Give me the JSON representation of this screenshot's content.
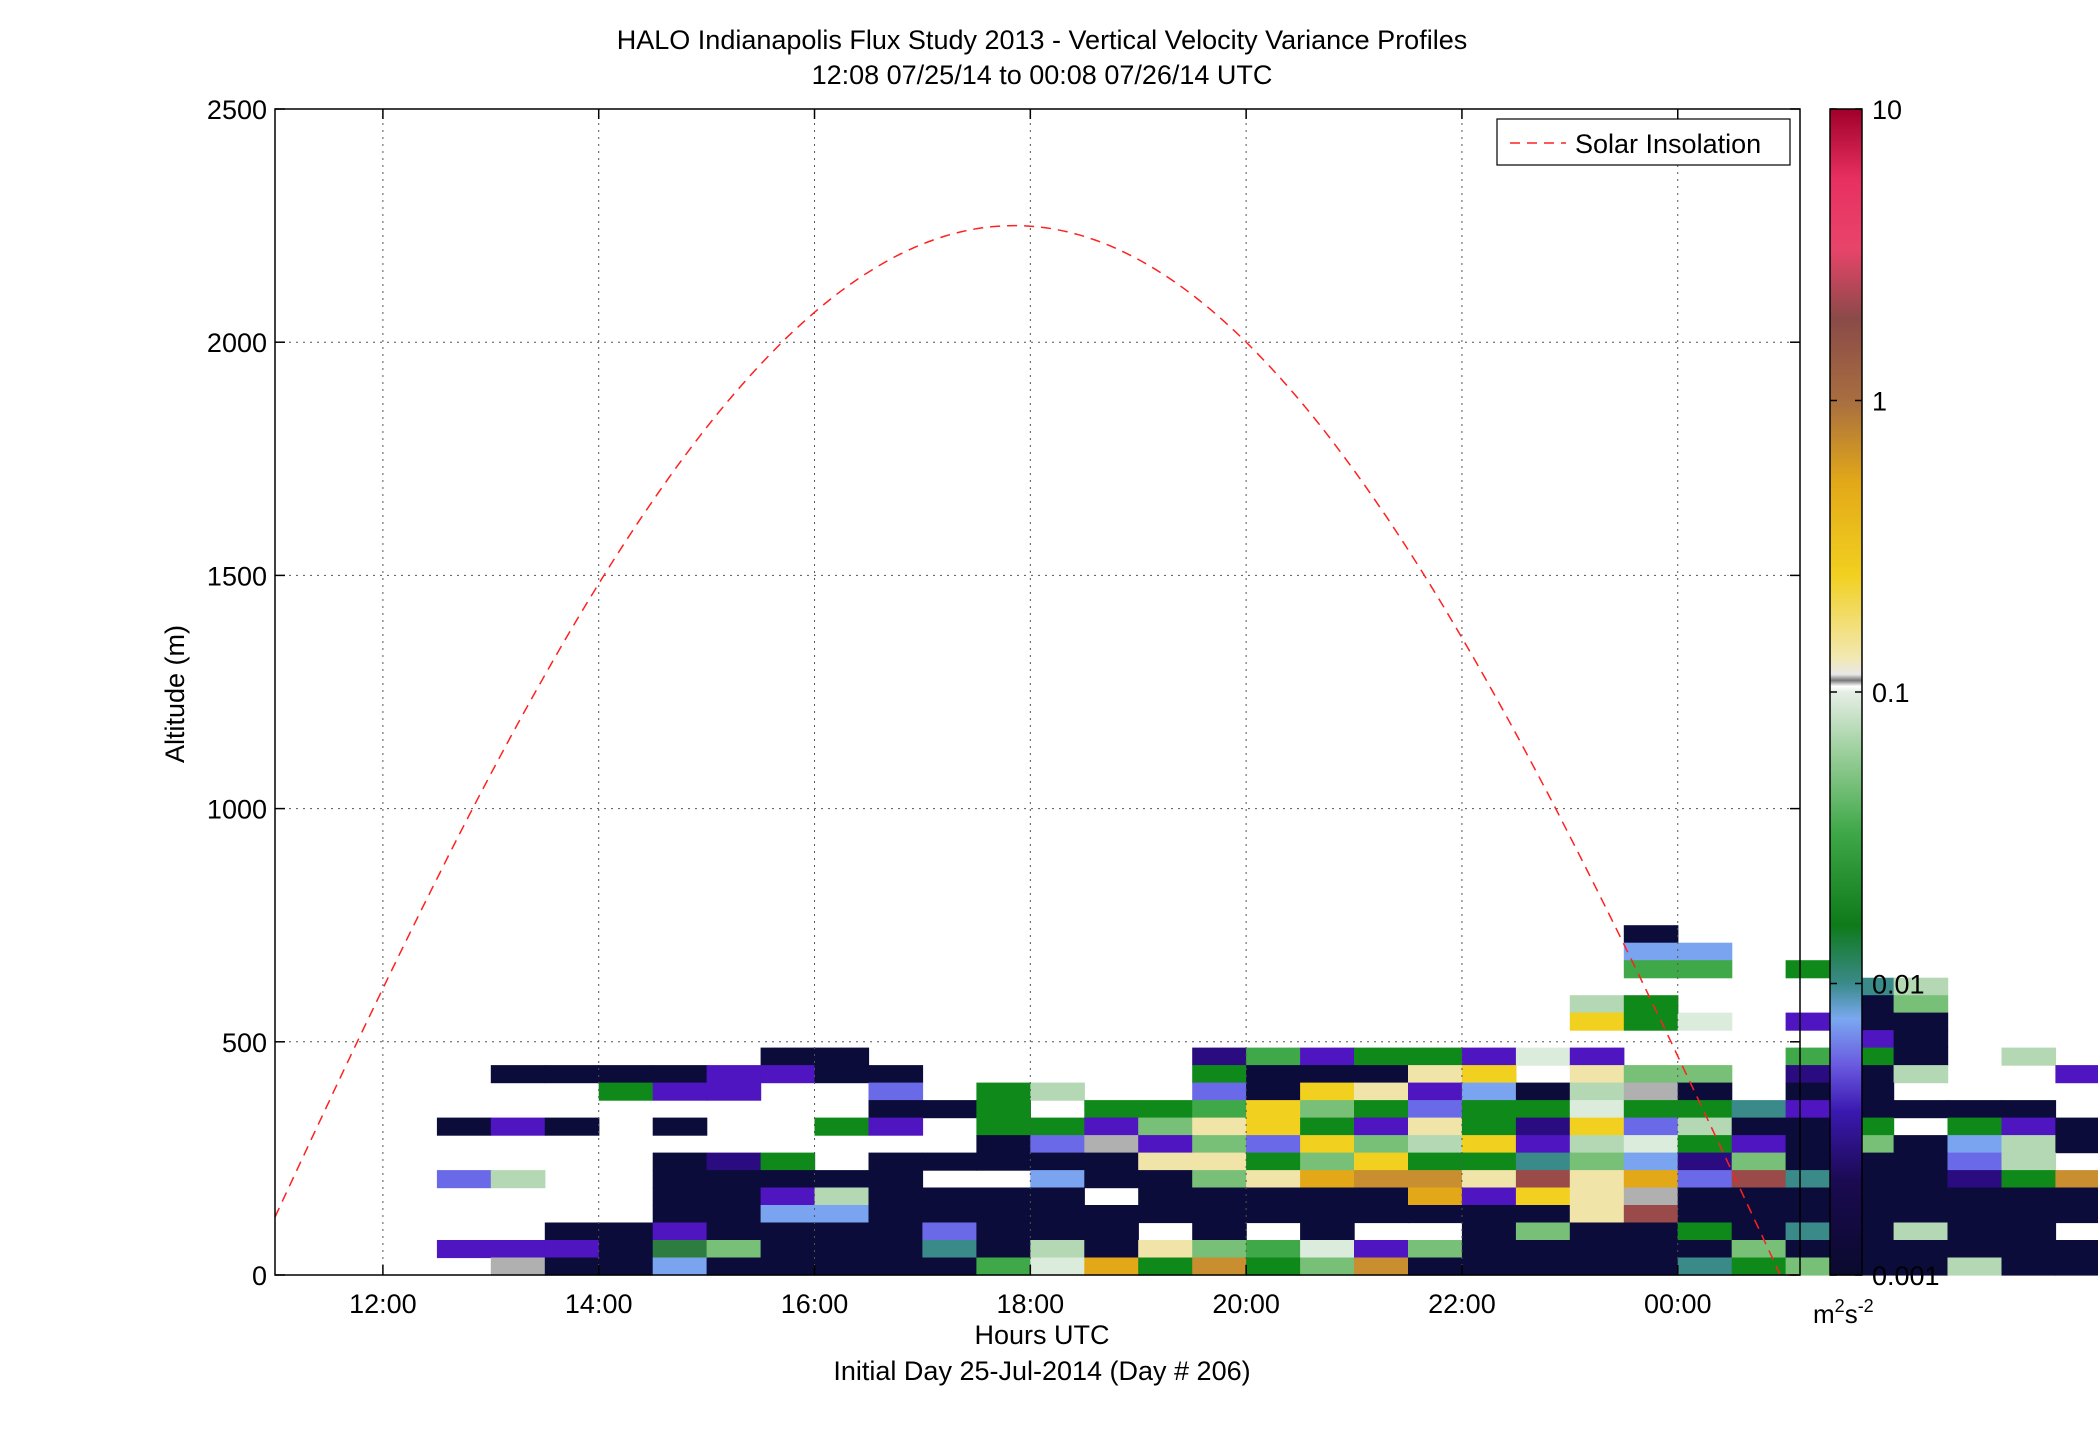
{
  "chart_data": {
    "type": "heatmap",
    "title": "HALO Indianapolis Flux Study 2013 - Vertical Velocity Variance Profiles",
    "subtitle": "12:08 07/25/14 to 00:08 07/26/14  UTC",
    "xlabel": "Hours UTC",
    "xlabel2": "Initial Day 25-Jul-2014 (Day # 206)",
    "ylabel": "Altitude (m)",
    "xlim": [
      11.0,
      25.133
    ],
    "ylim": [
      0,
      2500
    ],
    "x_ticks": [
      12,
      14,
      16,
      18,
      20,
      22,
      24
    ],
    "x_tick_labels": [
      "12:00",
      "14:00",
      "16:00",
      "18:00",
      "20:00",
      "22:00",
      "00:00"
    ],
    "y_ticks": [
      0,
      500,
      1000,
      1500,
      2000,
      2500
    ],
    "y_tick_labels": [
      "0",
      "500",
      "1000",
      "1500",
      "2000",
      "2500"
    ],
    "grid": true,
    "legend": {
      "entries": [
        "Solar Insolation"
      ],
      "placement": "top-right"
    },
    "colorbar": {
      "scale": "log",
      "range": [
        0.001,
        10
      ],
      "tick_values": [
        0.001,
        0.01,
        0.1,
        1,
        10
      ],
      "tick_labels": [
        "0.001",
        "0.01",
        "0.1",
        "1",
        "10"
      ],
      "unit_label": "m",
      "unit_sup1": "2",
      "unit_mid": "s",
      "unit_sup2": "-2"
    },
    "cell_width_hours": 0.5,
    "cell_height_m": 37.5,
    "color_key": {
      "N": "#0c0c3a",
      "P": "#4f15c0",
      "V": "#2a0c80",
      "B": "#6a6ae8",
      "L": "#7aa4f0",
      "T": "#3a8a8a",
      "G": "#0f8a1a",
      "D": "#2e7d40",
      "g": "#3fa848",
      "m": "#78c078",
      "l": "#b4d8b4",
      "w": "#dcecdc",
      "y": "#f2d020",
      "c": "#f0e4a8",
      "o": "#e2a818",
      "b": "#c88e30",
      "r": "#a86e40",
      "R": "#9a4a48",
      "k": "#e8446a",
      "s": "#b0b0b0"
    },
    "grid_columns_start_hour": 12.0,
    "grid_rows_bottom_altitude": 0,
    "values_rows_top_to_bottom": [
      ".......................N.........",
      ".......................LL........",
      ".......................gg.G......",
      "...........................Tl....",
      "......................lG...Nm....",
      "......................yGwdPNN....",
      "...........................PN....",
      ".......NN......VgPGGPwP...gGN.l..",
      "..NNNNPPNN.....GNNNcy.cmm.VNl..P.",
      "....GPP..B.Gl..BNycPLNlsN.NN.....",
      ".........NNG.GGgymGBGGwGGTPNNNN..",
      ".NPN.N..GP.GGPmcyGPcGVyBlNNGdGPN.",
      "...........NBsPmBymlyPlwGPNmNLlN.",
      ".....NVG.NNNNNccGmyGGTmLVmNNNBl..",
      ".Bl..NNNNN..LNNmcobbcRcoBRTNNVGbD",
      ".....NNPlNNNNSNNNNNoPycsNNNNNNNNN",
      ".....NNLLNNNNNNNNNNNNNcRNNNNNNNNN",
      "...NNPNNNNBNNNSNSNSSNmNNGNTNlNN.N",
      ".PPPNDmNNNTNlNcmgwPmNNNNNmNNNNNNN",
      "..sNNLNNNNNgwoGbGmbNNNNNTGmNNlNNN"
    ]
  }
}
